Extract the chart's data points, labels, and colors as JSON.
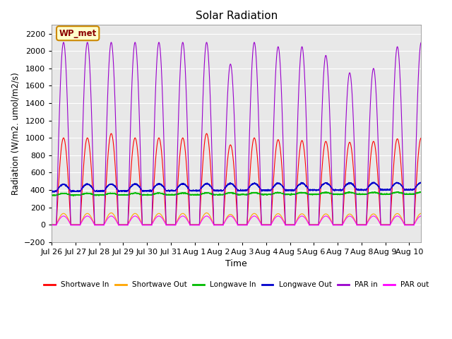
{
  "title": "Solar Radiation",
  "xlabel": "Time",
  "ylabel": "Radiation (W/m2. umol/m2/s)",
  "ylim": [
    -200,
    2300
  ],
  "yticks": [
    -200,
    0,
    200,
    400,
    600,
    800,
    1000,
    1200,
    1400,
    1600,
    1800,
    2000,
    2200
  ],
  "xlim": [
    0,
    15.5
  ],
  "background_color": "#e8e8e8",
  "legend_labels": [
    "Shortwave In",
    "Shortwave Out",
    "Longwave In",
    "Longwave Out",
    "PAR in",
    "PAR out"
  ],
  "legend_colors": [
    "#ff0000",
    "#ffa500",
    "#00bb00",
    "#0000cc",
    "#9900cc",
    "#ff00ff"
  ],
  "annotation_text": "WP_met",
  "annotation_bg": "#ffffcc",
  "annotation_border": "#cc8800",
  "tick_labels": [
    "Jul 26",
    "Jul 27",
    "Jul 28",
    "Jul 29",
    "Jul 30",
    "Jul 31",
    "Aug 1",
    "Aug 2",
    "Aug 3",
    "Aug 4",
    "Aug 5",
    "Aug 6",
    "Aug 7",
    "Aug 8",
    "Aug 9",
    "Aug 10"
  ],
  "sw_in_peaks": [
    1000,
    1000,
    1050,
    1000,
    1000,
    1000,
    1050,
    920,
    1000,
    980,
    970,
    960,
    950,
    960,
    990,
    1000
  ],
  "par_in_peaks": [
    2100,
    2100,
    2100,
    2100,
    2100,
    2100,
    2100,
    1850,
    2100,
    2050,
    2050,
    1950,
    1750,
    1800,
    2050,
    2100
  ],
  "lw_in_base": 340,
  "lw_out_base": 385,
  "sw_out_ratio": 0.13,
  "par_out_peak": 100
}
